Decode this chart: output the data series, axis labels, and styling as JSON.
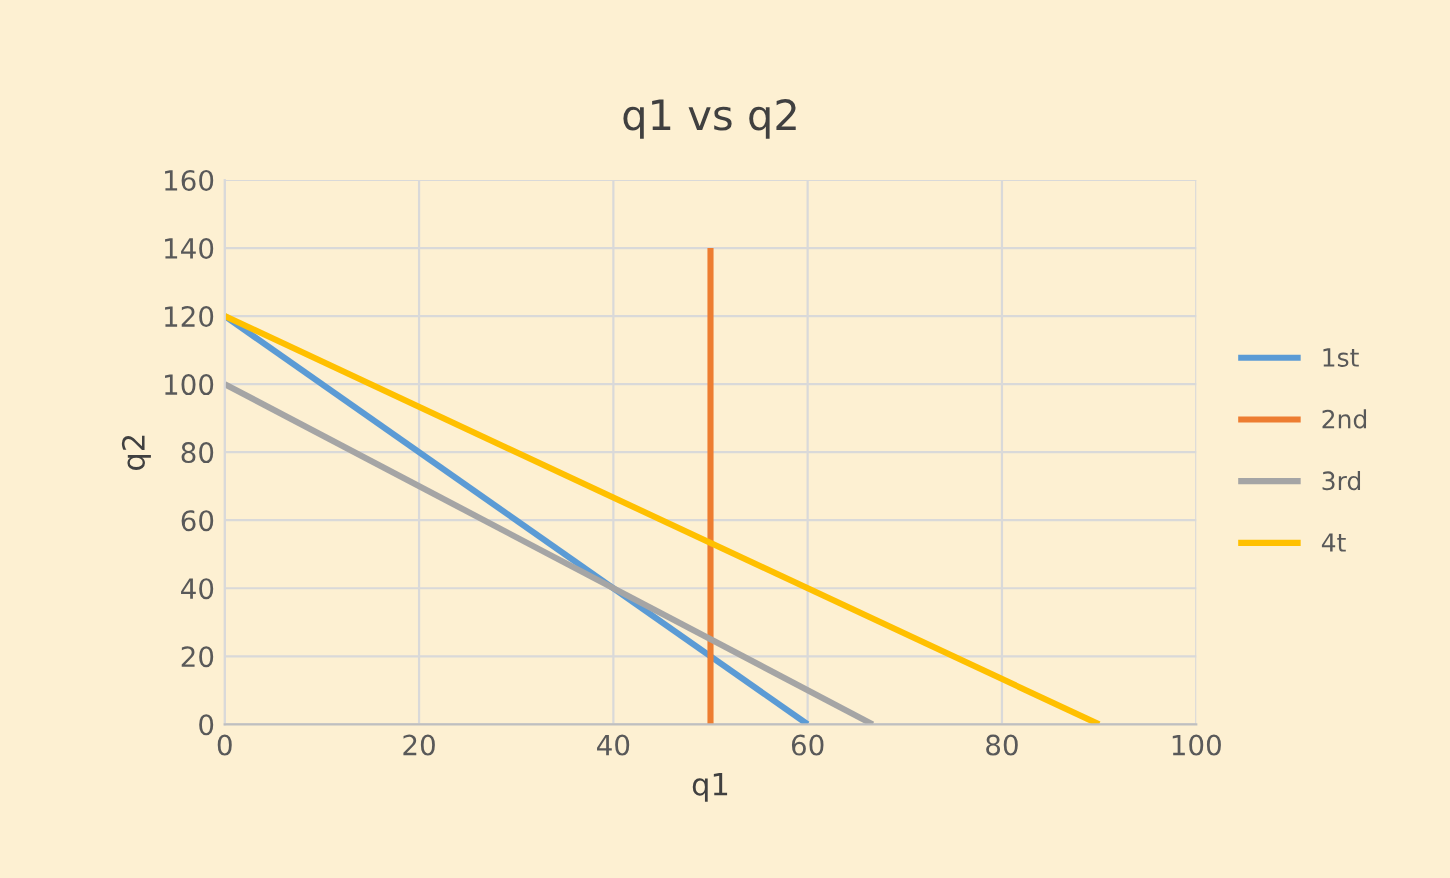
{
  "chart_data": {
    "type": "line",
    "title": "q1 vs q2",
    "xlabel": "q1",
    "ylabel": "q2",
    "series": [
      {
        "name": "1st",
        "color": "#5b9bd5",
        "x": [
          0,
          60
        ],
        "values": [
          120,
          0
        ]
      },
      {
        "name": "2nd",
        "color": "#ed7d31",
        "x": [
          50,
          50
        ],
        "values": [
          0,
          140
        ]
      },
      {
        "name": "3rd",
        "color": "#a5a5a5",
        "x": [
          0,
          66.7
        ],
        "values": [
          100,
          0
        ]
      },
      {
        "name": "4t",
        "color": "#ffc000",
        "x": [
          0,
          90
        ],
        "values": [
          120,
          0
        ]
      }
    ],
    "xlim": [
      0,
      100
    ],
    "xticks": [
      0,
      20,
      40,
      60,
      80,
      100
    ],
    "ylim": [
      0,
      160
    ],
    "yticks": [
      0,
      20,
      40,
      60,
      80,
      100,
      120,
      140,
      160
    ],
    "grid": true,
    "legend": "right",
    "marker": "none",
    "line_style": "solid"
  }
}
